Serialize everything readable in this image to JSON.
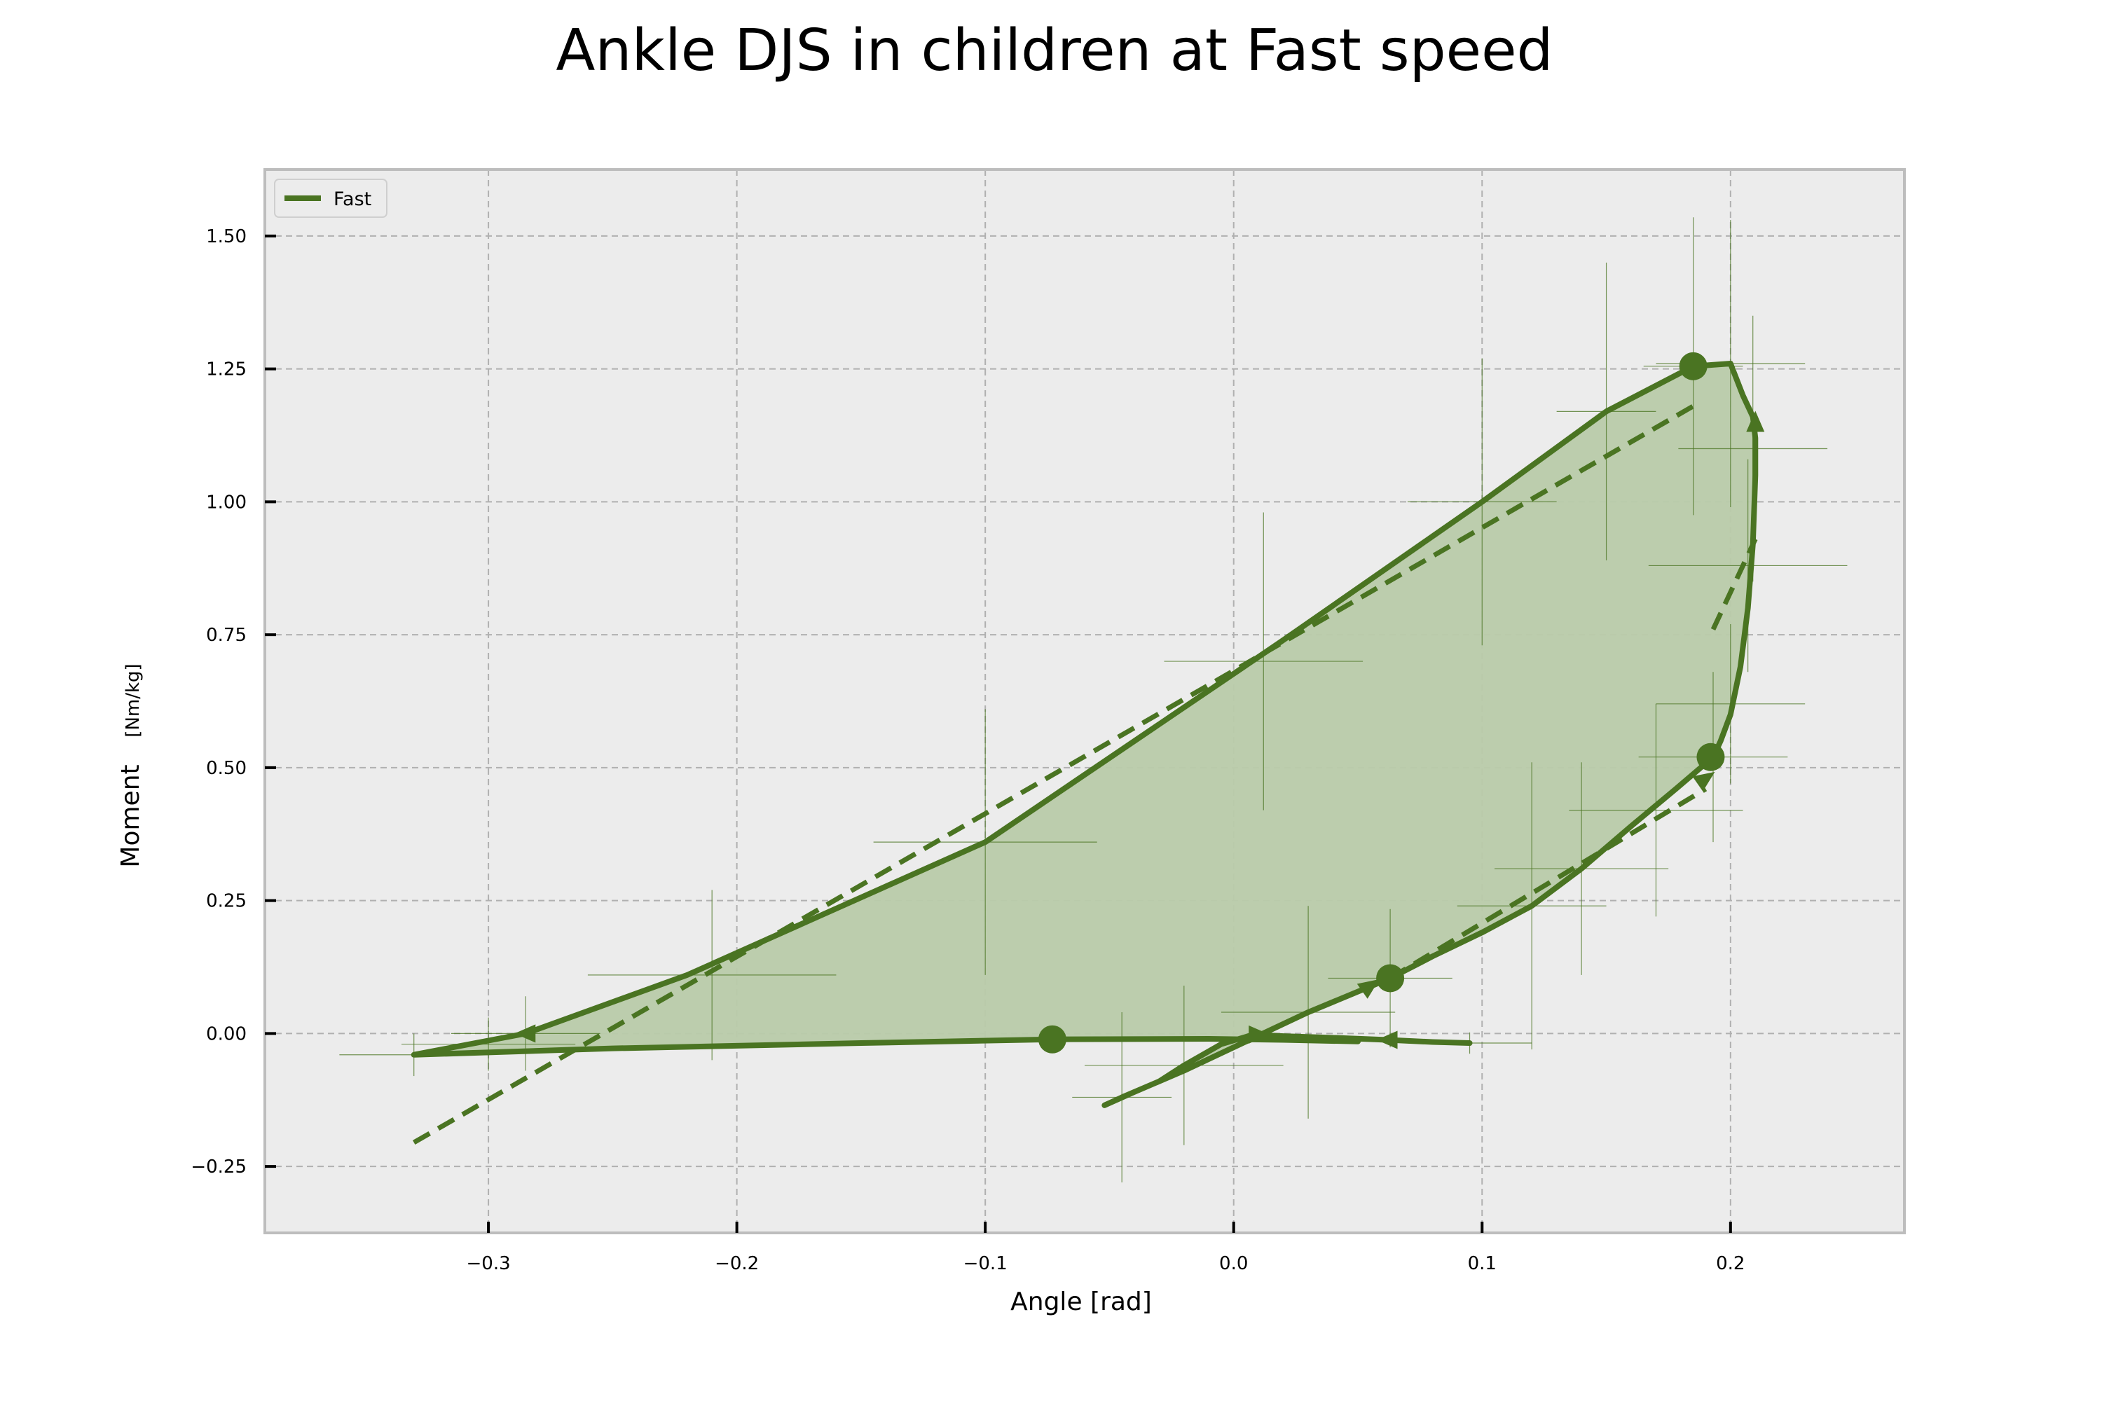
{
  "chart_data": {
    "type": "line",
    "title": "Ankle DJS in children at Fast speed",
    "xlabel": "Angle [rad]",
    "ylabel": "Moment",
    "ylabel_unit": "[Nm/kg]",
    "xlim": [
      -0.39,
      0.27
    ],
    "ylim": [
      -0.375,
      1.625
    ],
    "xticks": [
      -0.3,
      -0.2,
      -0.1,
      0.0,
      0.1,
      0.2
    ],
    "xtick_labels": [
      "−0.3",
      "−0.2",
      "−0.1",
      "0.0",
      "0.1",
      "0.2"
    ],
    "yticks": [
      -0.25,
      0.0,
      0.25,
      0.5,
      0.75,
      1.0,
      1.25,
      1.5
    ],
    "ytick_labels": [
      "−0.25",
      "0.00",
      "0.25",
      "0.50",
      "0.75",
      "1.00",
      "1.25",
      "1.50"
    ],
    "grid": true,
    "legend": {
      "placement": "top-left",
      "entries": [
        "Fast"
      ]
    },
    "colors": {
      "series": "#4a7422",
      "fill": "#b9cbaa",
      "background": "#ececec",
      "grid": "#b0b0b0",
      "frame": "#bdbdbd"
    },
    "series": [
      {
        "name": "Fast",
        "x": [
          0.095,
          0.08,
          0.062,
          0.04,
          0.02,
          0.008,
          -0.005,
          -0.02,
          -0.03,
          -0.045,
          -0.052,
          -0.04,
          -0.02,
          0.005,
          0.03,
          0.063,
          0.08,
          0.1,
          0.12,
          0.14,
          0.16,
          0.178,
          0.188,
          0.193,
          0.196,
          0.2,
          0.204,
          0.207,
          0.209,
          0.21,
          0.21,
          0.209,
          0.205,
          0.2,
          0.185,
          0.15,
          0.1,
          0.02,
          -0.1,
          -0.22,
          -0.285,
          -0.33,
          -0.25,
          -0.15,
          -0.073,
          -0.01,
          0.02,
          0.05
        ],
        "y": [
          -0.018,
          -0.016,
          -0.012,
          -0.008,
          -0.005,
          -0.002,
          -0.02,
          -0.06,
          -0.09,
          -0.12,
          -0.135,
          -0.11,
          -0.07,
          -0.015,
          0.04,
          0.104,
          0.145,
          0.19,
          0.24,
          0.31,
          0.39,
          0.46,
          0.5,
          0.52,
          0.55,
          0.6,
          0.69,
          0.8,
          0.92,
          1.05,
          1.12,
          1.16,
          1.2,
          1.26,
          1.255,
          1.17,
          1.0,
          0.74,
          0.36,
          0.11,
          0.0,
          -0.04,
          -0.028,
          -0.018,
          -0.011,
          -0.01,
          -0.012,
          -0.015
        ],
        "markers": [
          {
            "x": -0.073,
            "y": -0.011
          },
          {
            "x": 0.063,
            "y": 0.104
          },
          {
            "x": 0.192,
            "y": 0.52
          },
          {
            "x": 0.185,
            "y": 1.255
          }
        ],
        "arrows": [
          {
            "x": 0.062,
            "y": -0.012,
            "dir": "left"
          },
          {
            "x": 0.01,
            "y": -0.002,
            "dir": "right"
          },
          {
            "x": 0.055,
            "y": 0.09,
            "dir": "up-right"
          },
          {
            "x": 0.19,
            "y": 0.48,
            "dir": "up-right"
          },
          {
            "x": 0.21,
            "y": 1.15,
            "dir": "up"
          },
          {
            "x": -0.285,
            "y": 0.0,
            "dir": "left"
          }
        ],
        "error_bars": [
          {
            "x": -0.33,
            "y": -0.04,
            "xerr": 0.03,
            "yerr": 0.04
          },
          {
            "x": -0.3,
            "y": -0.02,
            "xerr": 0.035,
            "yerr": 0.05
          },
          {
            "x": -0.285,
            "y": 0.0,
            "xerr": 0.03,
            "yerr": 0.07
          },
          {
            "x": -0.21,
            "y": 0.11,
            "xerr": 0.05,
            "yerr": 0.16
          },
          {
            "x": -0.1,
            "y": 0.36,
            "xerr": 0.045,
            "yerr": 0.25
          },
          {
            "x": 0.012,
            "y": 0.7,
            "xerr": 0.04,
            "yerr": 0.28
          },
          {
            "x": 0.1,
            "y": 1.0,
            "xerr": 0.03,
            "yerr": 0.27
          },
          {
            "x": 0.15,
            "y": 1.17,
            "xerr": 0.02,
            "yerr": 0.28
          },
          {
            "x": 0.185,
            "y": 1.255,
            "xerr": 0.02,
            "yerr": 0.28
          },
          {
            "x": 0.2,
            "y": 1.26,
            "xerr": 0.03,
            "yerr": 0.27
          },
          {
            "x": 0.209,
            "y": 1.1,
            "xerr": 0.03,
            "yerr": 0.25
          },
          {
            "x": 0.207,
            "y": 0.88,
            "xerr": 0.04,
            "yerr": 0.2
          },
          {
            "x": 0.2,
            "y": 0.62,
            "xerr": 0.03,
            "yerr": 0.15
          },
          {
            "x": 0.193,
            "y": 0.52,
            "xerr": 0.03,
            "yerr": 0.16
          },
          {
            "x": 0.17,
            "y": 0.42,
            "xerr": 0.035,
            "yerr": 0.2
          },
          {
            "x": 0.14,
            "y": 0.31,
            "xerr": 0.035,
            "yerr": 0.2
          },
          {
            "x": 0.12,
            "y": 0.24,
            "xerr": 0.03,
            "yerr": 0.27
          },
          {
            "x": 0.063,
            "y": 0.104,
            "xerr": 0.025,
            "yerr": 0.13
          },
          {
            "x": 0.03,
            "y": 0.04,
            "xerr": 0.035,
            "yerr": 0.2
          },
          {
            "x": -0.02,
            "y": -0.06,
            "xerr": 0.04,
            "yerr": 0.15
          },
          {
            "x": -0.045,
            "y": -0.12,
            "xerr": 0.02,
            "yerr": 0.16
          },
          {
            "x": 0.095,
            "y": -0.018,
            "xerr": 0.025,
            "yerr": 0.02
          }
        ]
      },
      {
        "name": "",
        "style": "dashed",
        "x": [
          -0.33,
          0.185
        ],
        "y": [
          -0.205,
          1.18
        ]
      },
      {
        "name": "",
        "style": "dashed",
        "x": [
          0.063,
          0.19
        ],
        "y": [
          0.104,
          0.46
        ]
      },
      {
        "name": "",
        "style": "dashed",
        "x": [
          0.193,
          0.21
        ],
        "y": [
          0.76,
          0.93
        ]
      }
    ]
  }
}
